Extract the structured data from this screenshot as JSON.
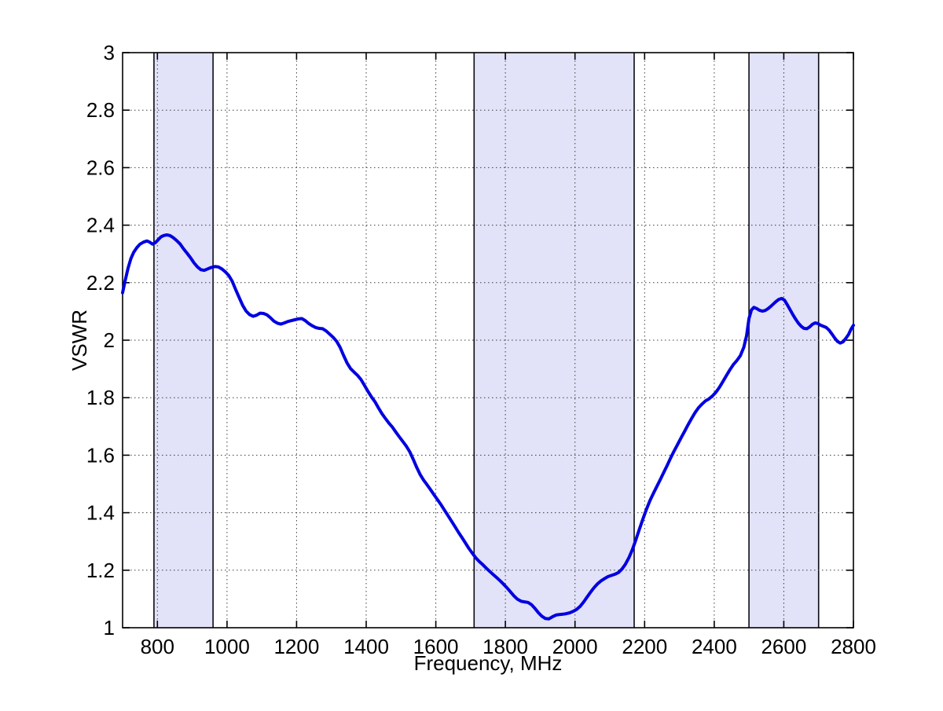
{
  "figure": {
    "background": "#ffffff"
  },
  "chart_data": {
    "type": "line",
    "title": "",
    "xlabel": "Frequency, MHz",
    "ylabel": "VSWR",
    "xlim": [
      700,
      2800
    ],
    "ylim": [
      1,
      3
    ],
    "x_ticks": [
      800,
      1000,
      1200,
      1400,
      1600,
      1800,
      2000,
      2200,
      2400,
      2600,
      2800
    ],
    "x_tick_labels": [
      "800",
      "1000",
      "1200",
      "1400",
      "1600",
      "1800",
      "2000",
      "2200",
      "2400",
      "2600",
      "2800"
    ],
    "y_ticks": [
      1,
      1.2,
      1.4,
      1.6,
      1.8,
      2,
      2.2,
      2.4,
      2.6,
      2.8,
      3
    ],
    "y_tick_labels": [
      "1",
      "1.2",
      "1.4",
      "1.6",
      "1.8",
      "2",
      "2.2",
      "2.4",
      "2.6",
      "2.8",
      "3"
    ],
    "grid": "dotted",
    "legend": "none",
    "axis_color": "#000000",
    "grid_color": "#3c3c3c",
    "line_color": "#0000e0",
    "line_width": 4,
    "band_fill": "#e2e2f8",
    "band_edge": "#0a0a14",
    "bands_mhz": [
      [
        790,
        960
      ],
      [
        1710,
        2170
      ],
      [
        2500,
        2700
      ]
    ],
    "series": [
      {
        "name": "VSWR",
        "points": [
          [
            700,
            2.165
          ],
          [
            708,
            2.21
          ],
          [
            716,
            2.252
          ],
          [
            724,
            2.284
          ],
          [
            732,
            2.306
          ],
          [
            741,
            2.322
          ],
          [
            750,
            2.334
          ],
          [
            760,
            2.341
          ],
          [
            770,
            2.345
          ],
          [
            778,
            2.341
          ],
          [
            786,
            2.334
          ],
          [
            794,
            2.339
          ],
          [
            802,
            2.349
          ],
          [
            810,
            2.359
          ],
          [
            818,
            2.364
          ],
          [
            827,
            2.366
          ],
          [
            836,
            2.364
          ],
          [
            845,
            2.357
          ],
          [
            855,
            2.347
          ],
          [
            865,
            2.335
          ],
          [
            875,
            2.318
          ],
          [
            885,
            2.303
          ],
          [
            895,
            2.287
          ],
          [
            905,
            2.269
          ],
          [
            915,
            2.255
          ],
          [
            925,
            2.245
          ],
          [
            935,
            2.243
          ],
          [
            945,
            2.248
          ],
          [
            955,
            2.253
          ],
          [
            965,
            2.256
          ],
          [
            975,
            2.255
          ],
          [
            985,
            2.248
          ],
          [
            995,
            2.238
          ],
          [
            1005,
            2.225
          ],
          [
            1015,
            2.205
          ],
          [
            1025,
            2.176
          ],
          [
            1035,
            2.148
          ],
          [
            1045,
            2.121
          ],
          [
            1055,
            2.101
          ],
          [
            1065,
            2.089
          ],
          [
            1075,
            2.083
          ],
          [
            1085,
            2.087
          ],
          [
            1095,
            2.094
          ],
          [
            1105,
            2.093
          ],
          [
            1115,
            2.088
          ],
          [
            1125,
            2.078
          ],
          [
            1135,
            2.066
          ],
          [
            1145,
            2.059
          ],
          [
            1155,
            2.056
          ],
          [
            1165,
            2.06
          ],
          [
            1175,
            2.065
          ],
          [
            1185,
            2.068
          ],
          [
            1195,
            2.071
          ],
          [
            1205,
            2.074
          ],
          [
            1215,
            2.075
          ],
          [
            1225,
            2.068
          ],
          [
            1235,
            2.058
          ],
          [
            1245,
            2.05
          ],
          [
            1255,
            2.044
          ],
          [
            1265,
            2.041
          ],
          [
            1275,
            2.04
          ],
          [
            1285,
            2.032
          ],
          [
            1295,
            2.021
          ],
          [
            1305,
            2.01
          ],
          [
            1315,
            1.996
          ],
          [
            1325,
            1.975
          ],
          [
            1335,
            1.947
          ],
          [
            1345,
            1.921
          ],
          [
            1355,
            1.901
          ],
          [
            1365,
            1.889
          ],
          [
            1375,
            1.878
          ],
          [
            1385,
            1.863
          ],
          [
            1395,
            1.843
          ],
          [
            1405,
            1.822
          ],
          [
            1415,
            1.803
          ],
          [
            1425,
            1.786
          ],
          [
            1435,
            1.765
          ],
          [
            1445,
            1.745
          ],
          [
            1455,
            1.728
          ],
          [
            1465,
            1.712
          ],
          [
            1475,
            1.698
          ],
          [
            1485,
            1.681
          ],
          [
            1495,
            1.664
          ],
          [
            1505,
            1.648
          ],
          [
            1515,
            1.632
          ],
          [
            1525,
            1.612
          ],
          [
            1535,
            1.586
          ],
          [
            1545,
            1.558
          ],
          [
            1555,
            1.533
          ],
          [
            1565,
            1.513
          ],
          [
            1575,
            1.497
          ],
          [
            1585,
            1.48
          ],
          [
            1595,
            1.462
          ],
          [
            1605,
            1.445
          ],
          [
            1615,
            1.428
          ],
          [
            1625,
            1.409
          ],
          [
            1635,
            1.39
          ],
          [
            1645,
            1.371
          ],
          [
            1655,
            1.352
          ],
          [
            1665,
            1.332
          ],
          [
            1675,
            1.314
          ],
          [
            1685,
            1.295
          ],
          [
            1695,
            1.276
          ],
          [
            1705,
            1.259
          ],
          [
            1715,
            1.243
          ],
          [
            1725,
            1.23
          ],
          [
            1735,
            1.219
          ],
          [
            1745,
            1.207
          ],
          [
            1755,
            1.196
          ],
          [
            1765,
            1.185
          ],
          [
            1775,
            1.174
          ],
          [
            1785,
            1.163
          ],
          [
            1795,
            1.151
          ],
          [
            1805,
            1.138
          ],
          [
            1815,
            1.124
          ],
          [
            1825,
            1.11
          ],
          [
            1835,
            1.099
          ],
          [
            1845,
            1.092
          ],
          [
            1855,
            1.09
          ],
          [
            1865,
            1.088
          ],
          [
            1875,
            1.08
          ],
          [
            1885,
            1.067
          ],
          [
            1895,
            1.052
          ],
          [
            1905,
            1.04
          ],
          [
            1915,
            1.032
          ],
          [
            1925,
            1.031
          ],
          [
            1935,
            1.038
          ],
          [
            1945,
            1.044
          ],
          [
            1955,
            1.046
          ],
          [
            1965,
            1.047
          ],
          [
            1975,
            1.049
          ],
          [
            1985,
            1.052
          ],
          [
            1995,
            1.057
          ],
          [
            2005,
            1.064
          ],
          [
            2015,
            1.075
          ],
          [
            2025,
            1.09
          ],
          [
            2035,
            1.107
          ],
          [
            2045,
            1.124
          ],
          [
            2055,
            1.14
          ],
          [
            2065,
            1.153
          ],
          [
            2075,
            1.163
          ],
          [
            2085,
            1.171
          ],
          [
            2095,
            1.178
          ],
          [
            2105,
            1.182
          ],
          [
            2115,
            1.186
          ],
          [
            2125,
            1.192
          ],
          [
            2135,
            1.204
          ],
          [
            2145,
            1.221
          ],
          [
            2155,
            1.244
          ],
          [
            2165,
            1.272
          ],
          [
            2175,
            1.306
          ],
          [
            2185,
            1.342
          ],
          [
            2195,
            1.378
          ],
          [
            2205,
            1.411
          ],
          [
            2215,
            1.441
          ],
          [
            2225,
            1.467
          ],
          [
            2235,
            1.491
          ],
          [
            2245,
            1.515
          ],
          [
            2255,
            1.54
          ],
          [
            2265,
            1.565
          ],
          [
            2275,
            1.591
          ],
          [
            2285,
            1.615
          ],
          [
            2295,
            1.638
          ],
          [
            2305,
            1.661
          ],
          [
            2315,
            1.683
          ],
          [
            2325,
            1.706
          ],
          [
            2335,
            1.728
          ],
          [
            2345,
            1.748
          ],
          [
            2355,
            1.765
          ],
          [
            2365,
            1.778
          ],
          [
            2375,
            1.789
          ],
          [
            2385,
            1.796
          ],
          [
            2395,
            1.806
          ],
          [
            2405,
            1.819
          ],
          [
            2415,
            1.836
          ],
          [
            2425,
            1.856
          ],
          [
            2435,
            1.877
          ],
          [
            2445,
            1.897
          ],
          [
            2455,
            1.915
          ],
          [
            2465,
            1.929
          ],
          [
            2475,
            1.946
          ],
          [
            2485,
            1.975
          ],
          [
            2493,
            2.015
          ],
          [
            2500,
            2.075
          ],
          [
            2507,
            2.105
          ],
          [
            2514,
            2.114
          ],
          [
            2522,
            2.11
          ],
          [
            2530,
            2.104
          ],
          [
            2538,
            2.101
          ],
          [
            2546,
            2.103
          ],
          [
            2554,
            2.109
          ],
          [
            2562,
            2.117
          ],
          [
            2570,
            2.126
          ],
          [
            2578,
            2.135
          ],
          [
            2586,
            2.142
          ],
          [
            2594,
            2.145
          ],
          [
            2602,
            2.139
          ],
          [
            2610,
            2.123
          ],
          [
            2618,
            2.106
          ],
          [
            2626,
            2.089
          ],
          [
            2634,
            2.073
          ],
          [
            2642,
            2.059
          ],
          [
            2650,
            2.048
          ],
          [
            2658,
            2.041
          ],
          [
            2666,
            2.04
          ],
          [
            2674,
            2.046
          ],
          [
            2682,
            2.055
          ],
          [
            2690,
            2.06
          ],
          [
            2698,
            2.058
          ],
          [
            2706,
            2.052
          ],
          [
            2714,
            2.048
          ],
          [
            2722,
            2.044
          ],
          [
            2730,
            2.035
          ],
          [
            2738,
            2.022
          ],
          [
            2746,
            2.008
          ],
          [
            2754,
            1.996
          ],
          [
            2762,
            1.99
          ],
          [
            2770,
            1.994
          ],
          [
            2778,
            2.006
          ],
          [
            2786,
            2.02
          ],
          [
            2794,
            2.04
          ],
          [
            2800,
            2.052
          ]
        ]
      }
    ]
  }
}
